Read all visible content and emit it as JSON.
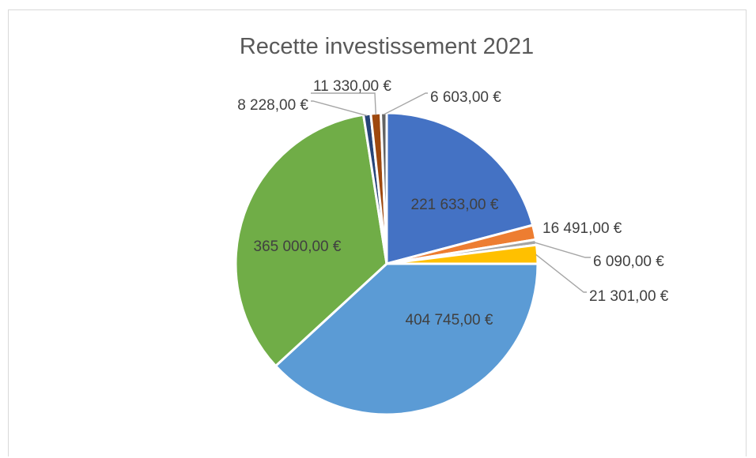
{
  "chart_data": {
    "type": "pie",
    "title": "Recette investissement 2021",
    "legend": "none",
    "slices": [
      {
        "value": 221633.0,
        "label": "221 633,00 €",
        "color": "#4472C4",
        "label_pos": "inside"
      },
      {
        "value": 16491.0,
        "label": "16 491,00 €",
        "color": "#ED7D31",
        "label_pos": "outside"
      },
      {
        "value": 6090.0,
        "label": "6 090,00 €",
        "color": "#A5A5A5",
        "label_pos": "outside"
      },
      {
        "value": 21301.0,
        "label": "21 301,00 €",
        "color": "#FFC000",
        "label_pos": "outside"
      },
      {
        "value": 404745.0,
        "label": "404 745,00 €",
        "color": "#5B9BD5",
        "label_pos": "inside"
      },
      {
        "value": 365000.0,
        "label": "365 000,00 €",
        "color": "#70AD47",
        "label_pos": "inside"
      },
      {
        "value": 8228.0,
        "label": "8 228,00 €",
        "color": "#264478",
        "label_pos": "outside"
      },
      {
        "value": 11330.0,
        "label": "11 330,00 €",
        "color": "#9E480E",
        "label_pos": "outside"
      },
      {
        "value": 6603.0,
        "label": "6 603,00 €",
        "color": "#636363",
        "label_pos": "outside"
      }
    ]
  }
}
